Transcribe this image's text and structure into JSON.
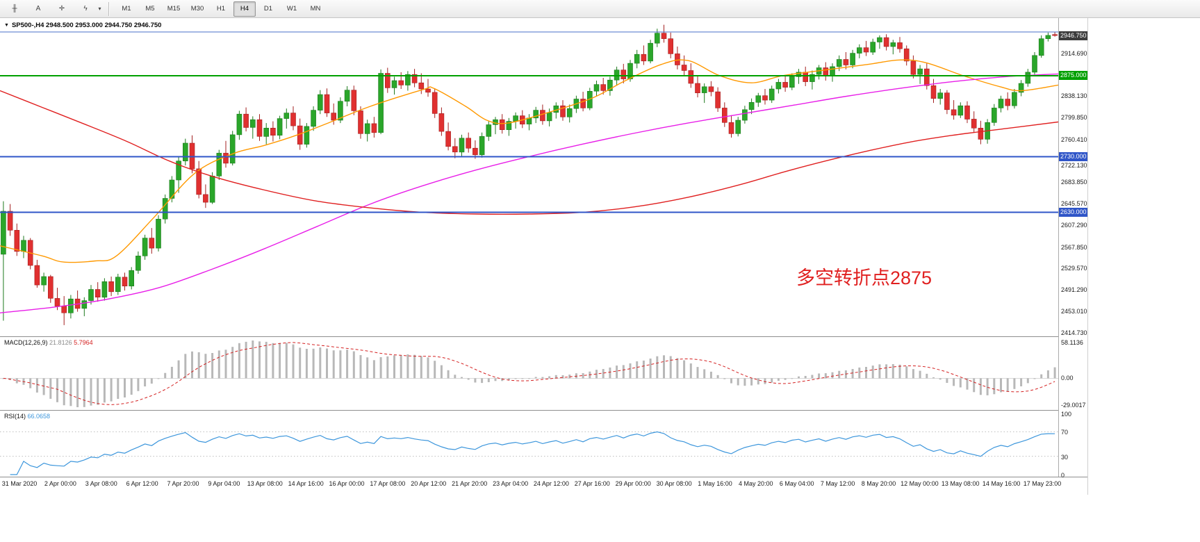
{
  "toolbar": {
    "icons": [
      {
        "name": "chart-tool-icon",
        "glyph": "╫"
      },
      {
        "name": "text-tool-icon",
        "glyph": "A"
      },
      {
        "name": "crosshair-tool-icon",
        "glyph": "✛"
      },
      {
        "name": "line-studies-icon",
        "glyph": "ϟ"
      },
      {
        "name": "dropdown-caret-icon",
        "glyph": "▾"
      }
    ],
    "timeframes": [
      "M1",
      "M5",
      "M15",
      "M30",
      "H1",
      "H4",
      "D1",
      "W1",
      "MN"
    ],
    "selected_timeframe": "H4"
  },
  "chart": {
    "marker_glyph": "▼",
    "title": "SP500-,H4  2948.500 2953.000 2944.750 2946.750",
    "annotation": {
      "text": "多空转折点2875",
      "color": "#e02020"
    },
    "price_axis_labels": [
      "2914.690",
      "2838.130",
      "2799.850",
      "2760.410",
      "2722.130",
      "2683.850",
      "2645.570",
      "2607.290",
      "2567.850",
      "2529.570",
      "2491.290",
      "2453.010",
      "2414.730"
    ],
    "price_badges": [
      {
        "name": "current-price-badge",
        "value": "2946.750",
        "price": 2946.75,
        "bg": "#3d3d3d"
      },
      {
        "name": "green-line-badge",
        "value": "2875.000",
        "price": 2875,
        "bg": "#00a000"
      },
      {
        "name": "blue-line-badge-2730",
        "value": "2730.000",
        "price": 2730,
        "bg": "#2f55c8"
      },
      {
        "name": "blue-line-badge-2630",
        "value": "2630.000",
        "price": 2630,
        "bg": "#2f55c8"
      }
    ],
    "time_axis_labels": [
      "31 Mar 2020",
      "2 Apr 00:00",
      "3 Apr 08:00",
      "6 Apr 12:00",
      "7 Apr 20:00",
      "9 Apr 04:00",
      "13 Apr 08:00",
      "14 Apr 16:00",
      "16 Apr 00:00",
      "17 Apr 08:00",
      "20 Apr 12:00",
      "21 Apr 20:00",
      "23 Apr 04:00",
      "24 Apr 12:00",
      "27 Apr 16:00",
      "29 Apr 00:00",
      "30 Apr 08:00",
      "1 May 16:00",
      "4 May 20:00",
      "6 May 04:00",
      "7 May 12:00",
      "8 May 20:00",
      "12 May 00:00",
      "13 May 08:00",
      "14 May 16:00",
      "17 May 23:00"
    ]
  },
  "indicators": {
    "macd": {
      "name": "MACD(12,26,9)",
      "value_main": "21.8126",
      "value_signal": "5.7964",
      "params": [
        12,
        26,
        9
      ],
      "axis_top": "58.1136",
      "axis_zero": "0.00",
      "axis_bottom": "-29.0017",
      "hist_color": "#b8b8b8",
      "signal_color": "#d42020",
      "value_main_color": "#8a8a8a"
    },
    "rsi": {
      "name": "RSI(14)",
      "value": "66.0658",
      "period": 14,
      "levels": [
        70,
        30
      ],
      "axis_labels": [
        "100",
        "70",
        "30",
        "0"
      ],
      "line_color": "#3c96dc"
    }
  },
  "chart_data": {
    "type": "candlestick",
    "symbol": "SP500-",
    "timeframe": "H4",
    "current_ohlc": {
      "open": 2948.5,
      "high": 2953.0,
      "low": 2944.75,
      "close": 2946.75
    },
    "price_range": [
      2408,
      2978
    ],
    "colors": {
      "up": "#2aa62a",
      "up_stroke": "#1d7a1d",
      "down": "#e03030",
      "down_stroke": "#a32020"
    },
    "horizontal_lines": [
      {
        "price": 2953.0,
        "color": "#4a6fc8",
        "width": 1
      },
      {
        "price": 2875.0,
        "color": "#00a000",
        "width": 2
      },
      {
        "price": 2730.0,
        "color": "#2f55c8",
        "width": 2
      },
      {
        "price": 2630.0,
        "color": "#2f55c8",
        "width": 2
      }
    ],
    "moving_averages": [
      {
        "name": "ma-fast-orange",
        "color": "#ff9900",
        "points": [
          [
            0,
            2570
          ],
          [
            0.04,
            2552
          ],
          [
            0.06,
            2541
          ],
          [
            0.09,
            2543
          ],
          [
            0.11,
            2552
          ],
          [
            0.145,
            2620
          ],
          [
            0.184,
            2700
          ],
          [
            0.22,
            2735
          ],
          [
            0.25,
            2750
          ],
          [
            0.28,
            2768
          ],
          [
            0.31,
            2790
          ],
          [
            0.35,
            2820
          ],
          [
            0.4,
            2850
          ],
          [
            0.41,
            2852
          ],
          [
            0.44,
            2820
          ],
          [
            0.46,
            2795
          ],
          [
            0.48,
            2790
          ],
          [
            0.52,
            2810
          ],
          [
            0.56,
            2835
          ],
          [
            0.59,
            2865
          ],
          [
            0.625,
            2895
          ],
          [
            0.65,
            2902
          ],
          [
            0.68,
            2875
          ],
          [
            0.71,
            2862
          ],
          [
            0.74,
            2875
          ],
          [
            0.78,
            2885
          ],
          [
            0.82,
            2895
          ],
          [
            0.85,
            2903
          ],
          [
            0.875,
            2898
          ],
          [
            0.91,
            2875
          ],
          [
            0.945,
            2855
          ],
          [
            0.965,
            2848
          ],
          [
            1,
            2858
          ]
        ]
      },
      {
        "name": "ma-slow-magenta",
        "color": "#e81ee8",
        "points": [
          [
            0,
            2450
          ],
          [
            0.05,
            2460
          ],
          [
            0.1,
            2474
          ],
          [
            0.15,
            2495
          ],
          [
            0.2,
            2528
          ],
          [
            0.25,
            2565
          ],
          [
            0.3,
            2605
          ],
          [
            0.35,
            2645
          ],
          [
            0.4,
            2678
          ],
          [
            0.45,
            2706
          ],
          [
            0.5,
            2730
          ],
          [
            0.55,
            2752
          ],
          [
            0.6,
            2772
          ],
          [
            0.65,
            2790
          ],
          [
            0.7,
            2806
          ],
          [
            0.75,
            2822
          ],
          [
            0.8,
            2838
          ],
          [
            0.85,
            2852
          ],
          [
            0.9,
            2864
          ],
          [
            0.95,
            2873
          ],
          [
            1,
            2878
          ]
        ]
      },
      {
        "name": "ma-long-red",
        "color": "#e02020",
        "points": [
          [
            0,
            2848
          ],
          [
            0.04,
            2818
          ],
          [
            0.08,
            2788
          ],
          [
            0.12,
            2757
          ],
          [
            0.16,
            2722
          ],
          [
            0.2,
            2695
          ],
          [
            0.25,
            2670
          ],
          [
            0.3,
            2650
          ],
          [
            0.35,
            2638
          ],
          [
            0.4,
            2630
          ],
          [
            0.45,
            2627
          ],
          [
            0.5,
            2627
          ],
          [
            0.55,
            2630
          ],
          [
            0.6,
            2640
          ],
          [
            0.65,
            2657
          ],
          [
            0.7,
            2680
          ],
          [
            0.74,
            2702
          ],
          [
            0.78,
            2722
          ],
          [
            0.82,
            2740
          ],
          [
            0.86,
            2756
          ],
          [
            0.9,
            2768
          ],
          [
            0.95,
            2780
          ],
          [
            1,
            2792
          ]
        ]
      }
    ],
    "candles": [
      [
        2555,
        2650,
        2436,
        2632
      ],
      [
        2632,
        2645,
        2588,
        2598
      ],
      [
        2598,
        2610,
        2552,
        2560
      ],
      [
        2560,
        2588,
        2548,
        2580
      ],
      [
        2580,
        2584,
        2528,
        2535
      ],
      [
        2535,
        2545,
        2495,
        2500
      ],
      [
        2500,
        2522,
        2488,
        2515
      ],
      [
        2515,
        2518,
        2468,
        2476
      ],
      [
        2476,
        2495,
        2455,
        2462
      ],
      [
        2462,
        2480,
        2428,
        2450
      ],
      [
        2450,
        2482,
        2440,
        2475
      ],
      [
        2475,
        2490,
        2452,
        2458
      ],
      [
        2458,
        2478,
        2444,
        2472
      ],
      [
        2472,
        2500,
        2465,
        2492
      ],
      [
        2492,
        2505,
        2470,
        2478
      ],
      [
        2478,
        2512,
        2472,
        2506
      ],
      [
        2506,
        2515,
        2480,
        2488
      ],
      [
        2488,
        2520,
        2482,
        2514
      ],
      [
        2514,
        2522,
        2490,
        2498
      ],
      [
        2498,
        2532,
        2492,
        2526
      ],
      [
        2526,
        2560,
        2520,
        2552
      ],
      [
        2552,
        2590,
        2545,
        2584
      ],
      [
        2584,
        2602,
        2556,
        2566
      ],
      [
        2566,
        2625,
        2560,
        2618
      ],
      [
        2618,
        2662,
        2610,
        2655
      ],
      [
        2655,
        2695,
        2648,
        2688
      ],
      [
        2688,
        2730,
        2665,
        2722
      ],
      [
        2722,
        2762,
        2714,
        2754
      ],
      [
        2754,
        2768,
        2700,
        2708
      ],
      [
        2708,
        2722,
        2655,
        2662
      ],
      [
        2662,
        2680,
        2638,
        2648
      ],
      [
        2648,
        2702,
        2645,
        2695
      ],
      [
        2695,
        2742,
        2688,
        2736
      ],
      [
        2736,
        2758,
        2710,
        2718
      ],
      [
        2718,
        2776,
        2714,
        2769
      ],
      [
        2769,
        2812,
        2760,
        2806
      ],
      [
        2806,
        2818,
        2775,
        2782
      ],
      [
        2782,
        2802,
        2762,
        2796
      ],
      [
        2796,
        2806,
        2758,
        2766
      ],
      [
        2766,
        2790,
        2752,
        2781
      ],
      [
        2781,
        2793,
        2757,
        2768
      ],
      [
        2768,
        2803,
        2761,
        2798
      ],
      [
        2798,
        2816,
        2780,
        2808
      ],
      [
        2808,
        2820,
        2777,
        2785
      ],
      [
        2785,
        2798,
        2742,
        2752
      ],
      [
        2752,
        2790,
        2746,
        2784
      ],
      [
        2784,
        2820,
        2776,
        2813
      ],
      [
        2813,
        2849,
        2806,
        2841
      ],
      [
        2841,
        2852,
        2801,
        2808
      ],
      [
        2808,
        2825,
        2787,
        2795
      ],
      [
        2795,
        2836,
        2790,
        2829
      ],
      [
        2829,
        2856,
        2820,
        2849
      ],
      [
        2849,
        2857,
        2804,
        2812
      ],
      [
        2812,
        2820,
        2762,
        2771
      ],
      [
        2771,
        2796,
        2757,
        2789
      ],
      [
        2789,
        2801,
        2764,
        2773
      ],
      [
        2773,
        2886,
        2770,
        2879
      ],
      [
        2879,
        2889,
        2844,
        2853
      ],
      [
        2853,
        2873,
        2841,
        2866
      ],
      [
        2866,
        2881,
        2851,
        2858
      ],
      [
        2858,
        2883,
        2848,
        2877
      ],
      [
        2877,
        2887,
        2854,
        2862
      ],
      [
        2862,
        2879,
        2842,
        2851
      ],
      [
        2851,
        2869,
        2837,
        2845
      ],
      [
        2845,
        2851,
        2799,
        2807
      ],
      [
        2807,
        2818,
        2767,
        2775
      ],
      [
        2775,
        2791,
        2741,
        2748
      ],
      [
        2748,
        2763,
        2727,
        2738
      ],
      [
        2738,
        2769,
        2731,
        2763
      ],
      [
        2763,
        2773,
        2737,
        2745
      ],
      [
        2745,
        2759,
        2726,
        2733
      ],
      [
        2733,
        2773,
        2728,
        2766
      ],
      [
        2766,
        2793,
        2758,
        2787
      ],
      [
        2787,
        2801,
        2770,
        2796
      ],
      [
        2796,
        2806,
        2771,
        2778
      ],
      [
        2778,
        2799,
        2767,
        2793
      ],
      [
        2793,
        2809,
        2780,
        2803
      ],
      [
        2803,
        2813,
        2781,
        2788
      ],
      [
        2788,
        2806,
        2777,
        2799
      ],
      [
        2799,
        2819,
        2790,
        2813
      ],
      [
        2813,
        2823,
        2787,
        2794
      ],
      [
        2794,
        2816,
        2784,
        2809
      ],
      [
        2809,
        2827,
        2798,
        2821
      ],
      [
        2821,
        2831,
        2794,
        2801
      ],
      [
        2801,
        2823,
        2791,
        2816
      ],
      [
        2816,
        2839,
        2808,
        2833
      ],
      [
        2833,
        2846,
        2811,
        2817
      ],
      [
        2817,
        2853,
        2813,
        2847
      ],
      [
        2847,
        2866,
        2838,
        2859
      ],
      [
        2859,
        2871,
        2841,
        2848
      ],
      [
        2848,
        2873,
        2839,
        2867
      ],
      [
        2867,
        2891,
        2858,
        2885
      ],
      [
        2885,
        2896,
        2861,
        2869
      ],
      [
        2869,
        2903,
        2864,
        2897
      ],
      [
        2897,
        2921,
        2888,
        2913
      ],
      [
        2913,
        2929,
        2894,
        2901
      ],
      [
        2901,
        2939,
        2897,
        2933
      ],
      [
        2933,
        2959,
        2926,
        2951
      ],
      [
        2951,
        2966,
        2934,
        2941
      ],
      [
        2941,
        2952,
        2906,
        2914
      ],
      [
        2914,
        2927,
        2886,
        2894
      ],
      [
        2894,
        2911,
        2876,
        2884
      ],
      [
        2884,
        2897,
        2853,
        2861
      ],
      [
        2861,
        2874,
        2836,
        2844
      ],
      [
        2844,
        2861,
        2826,
        2855
      ],
      [
        2855,
        2865,
        2838,
        2846
      ],
      [
        2846,
        2854,
        2810,
        2817
      ],
      [
        2817,
        2827,
        2783,
        2791
      ],
      [
        2791,
        2804,
        2764,
        2771
      ],
      [
        2771,
        2801,
        2766,
        2795
      ],
      [
        2795,
        2821,
        2789,
        2814
      ],
      [
        2814,
        2834,
        2806,
        2827
      ],
      [
        2827,
        2844,
        2819,
        2839
      ],
      [
        2839,
        2851,
        2823,
        2831
      ],
      [
        2831,
        2857,
        2826,
        2851
      ],
      [
        2851,
        2869,
        2843,
        2863
      ],
      [
        2863,
        2874,
        2846,
        2854
      ],
      [
        2854,
        2879,
        2849,
        2873
      ],
      [
        2873,
        2887,
        2860,
        2881
      ],
      [
        2881,
        2891,
        2856,
        2864
      ],
      [
        2864,
        2884,
        2850,
        2877
      ],
      [
        2877,
        2894,
        2868,
        2889
      ],
      [
        2889,
        2899,
        2866,
        2874
      ],
      [
        2874,
        2897,
        2864,
        2891
      ],
      [
        2891,
        2911,
        2883,
        2904
      ],
      [
        2904,
        2917,
        2886,
        2894
      ],
      [
        2894,
        2921,
        2888,
        2915
      ],
      [
        2915,
        2931,
        2906,
        2925
      ],
      [
        2925,
        2937,
        2910,
        2917
      ],
      [
        2917,
        2941,
        2912,
        2935
      ],
      [
        2935,
        2947,
        2923,
        2943
      ],
      [
        2943,
        2949,
        2920,
        2927
      ],
      [
        2927,
        2939,
        2913,
        2934
      ],
      [
        2934,
        2944,
        2916,
        2923
      ],
      [
        2923,
        2929,
        2893,
        2901
      ],
      [
        2901,
        2911,
        2870,
        2877
      ],
      [
        2877,
        2894,
        2860,
        2887
      ],
      [
        2887,
        2897,
        2850,
        2857
      ],
      [
        2857,
        2869,
        2826,
        2834
      ],
      [
        2834,
        2851,
        2823,
        2844
      ],
      [
        2844,
        2849,
        2806,
        2814
      ],
      [
        2814,
        2831,
        2796,
        2804
      ],
      [
        2804,
        2827,
        2799,
        2821
      ],
      [
        2821,
        2829,
        2790,
        2797
      ],
      [
        2797,
        2811,
        2773,
        2781
      ],
      [
        2781,
        2794,
        2752,
        2761
      ],
      [
        2761,
        2797,
        2753,
        2791
      ],
      [
        2791,
        2824,
        2785,
        2817
      ],
      [
        2817,
        2839,
        2809,
        2833
      ],
      [
        2833,
        2845,
        2813,
        2821
      ],
      [
        2821,
        2851,
        2816,
        2845
      ],
      [
        2845,
        2867,
        2838,
        2861
      ],
      [
        2861,
        2887,
        2855,
        2881
      ],
      [
        2881,
        2917,
        2877,
        2911
      ],
      [
        2911,
        2947,
        2907,
        2941
      ],
      [
        2941,
        2952,
        2936,
        2947
      ],
      [
        2948.5,
        2953,
        2944.75,
        2946.75
      ]
    ]
  }
}
